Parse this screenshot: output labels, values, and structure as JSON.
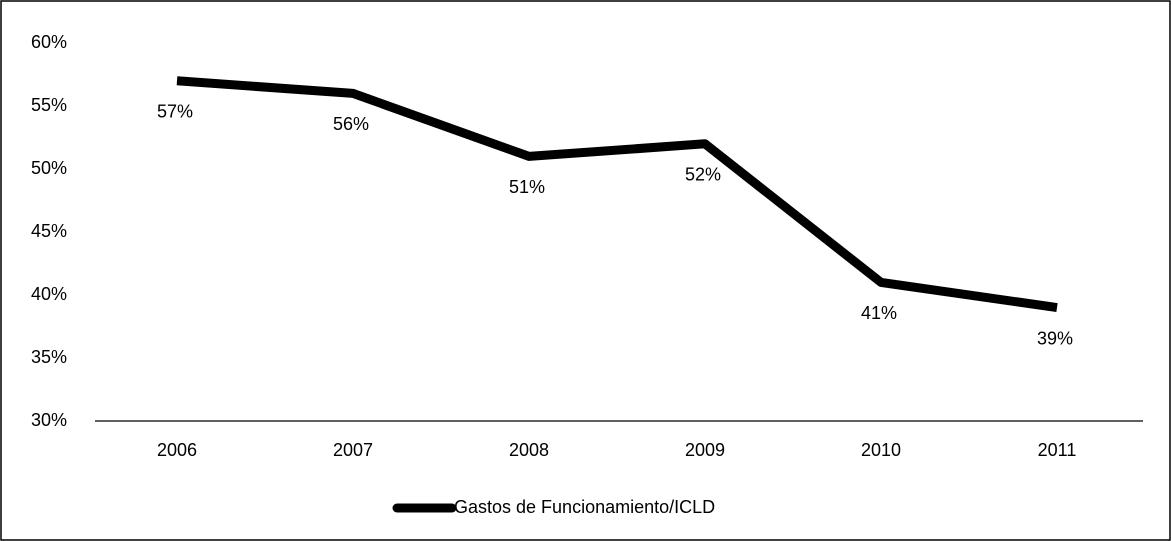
{
  "chart_data": {
    "type": "line",
    "categories": [
      "2006",
      "2007",
      "2008",
      "2009",
      "2010",
      "2011"
    ],
    "series": [
      {
        "name": "Gastos de Funcionamiento/ICLD",
        "color": "#000000",
        "values": [
          57,
          56,
          51,
          52,
          41,
          39
        ],
        "value_labels": [
          "57%",
          "56%",
          "51%",
          "52%",
          "41%",
          "39%"
        ]
      }
    ],
    "ylim": [
      30,
      60
    ],
    "yticks": [
      {
        "value": 30,
        "label": "30%"
      },
      {
        "value": 35,
        "label": "35%"
      },
      {
        "value": 40,
        "label": "40%"
      },
      {
        "value": 45,
        "label": "45%"
      },
      {
        "value": 50,
        "label": "50%"
      },
      {
        "value": 55,
        "label": "55%"
      },
      {
        "value": 60,
        "label": "60%"
      }
    ],
    "grid": false,
    "legend": "bottom"
  }
}
